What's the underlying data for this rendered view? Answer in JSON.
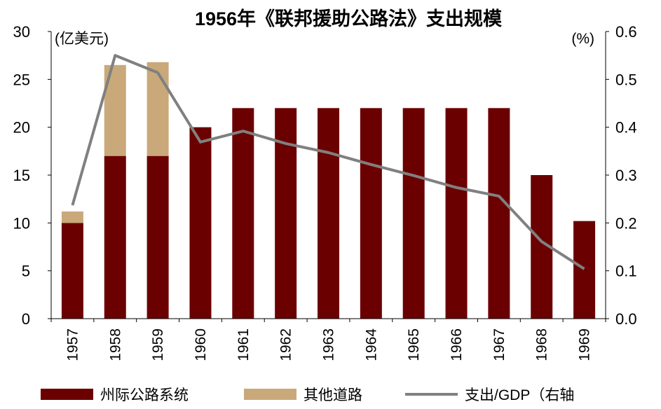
{
  "chart_data": {
    "type": "bar",
    "title": "1956年《联邦援助公路法》支出规模",
    "left_unit": "(亿美元)",
    "right_unit": "(%)",
    "categories": [
      "1957",
      "1958",
      "1959",
      "1960",
      "1961",
      "1962",
      "1963",
      "1964",
      "1965",
      "1966",
      "1967",
      "1968",
      "1969"
    ],
    "ylim": [
      0,
      30
    ],
    "yticks": [
      "0",
      "5",
      "10",
      "15",
      "20",
      "25",
      "30"
    ],
    "y2lim": [
      0,
      0.6
    ],
    "y2ticks": [
      "0.0",
      "0.1",
      "0.2",
      "0.3",
      "0.4",
      "0.5",
      "0.6"
    ],
    "stacked": true,
    "grid": false,
    "legend_position": "bottom",
    "series": [
      {
        "name": "州际公路系统",
        "type": "bar",
        "color": "#6b0000",
        "values": [
          10,
          17,
          17,
          20,
          22,
          22,
          22,
          22,
          22,
          22,
          22,
          15,
          10.2
        ]
      },
      {
        "name": "其他道路",
        "type": "bar",
        "color": "#c9a97a",
        "values": [
          1.2,
          9.5,
          9.8,
          0,
          0,
          0,
          0,
          0,
          0,
          0,
          0,
          0,
          0
        ]
      },
      {
        "name": "支出/GDP（右轴",
        "type": "line",
        "axis": "right",
        "color": "#808080",
        "values": [
          0.237,
          0.55,
          0.514,
          0.369,
          0.392,
          0.366,
          0.347,
          0.322,
          0.299,
          0.274,
          0.256,
          0.161,
          0.104
        ]
      }
    ]
  }
}
